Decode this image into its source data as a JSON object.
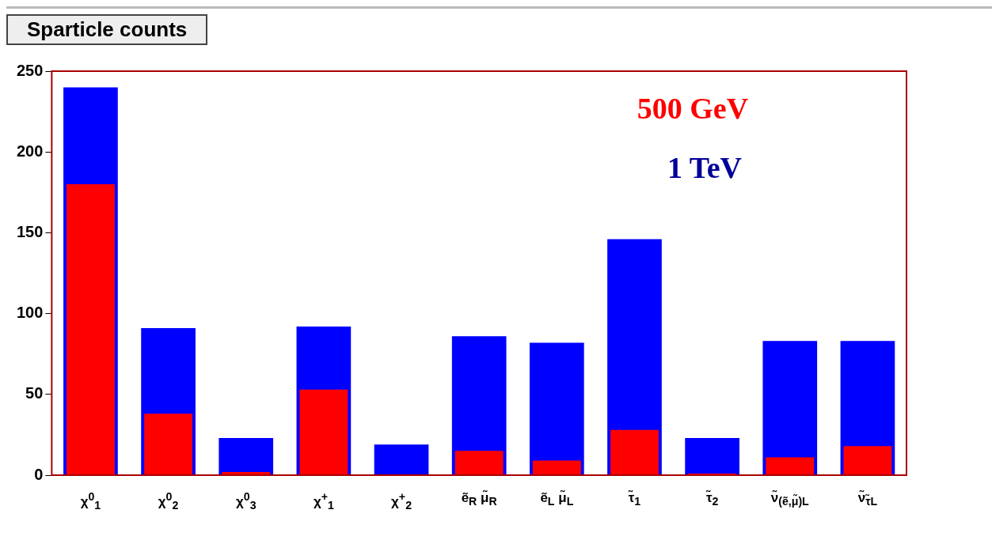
{
  "chart_data": {
    "type": "bar",
    "title": "Sparticle counts",
    "categories": [
      "χ$^{0}$$_{1}$",
      "χ$^{0}$$_{2}$",
      "χ$^{0}$$_{3}$",
      "χ$^{+}$$_{1}$",
      "χ$^{+}$$_{2}$",
      "ẽ$_{R}$ μ̃$_{R}$",
      "ẽ$_{L}$ μ̃$_{L}$",
      "τ̃$_{1}$",
      "τ̃$_{2}$",
      "ν̃$_{(ẽ,μ̃)L}$",
      "ν̃$_{τ̃L}$"
    ],
    "series": [
      {
        "name": "500 GeV",
        "color": "#ff0000",
        "values": [
          180,
          38,
          2,
          53,
          0,
          15,
          9,
          28,
          1,
          11,
          18
        ]
      },
      {
        "name": "1 TeV",
        "color": "#0000ff",
        "values": [
          240,
          91,
          23,
          92,
          19,
          86,
          82,
          146,
          23,
          83,
          83
        ]
      }
    ],
    "ylim": [
      0,
      250
    ],
    "yticks": [
      0,
      50,
      100,
      150,
      200,
      250
    ],
    "grid": false,
    "legend": "top right"
  }
}
